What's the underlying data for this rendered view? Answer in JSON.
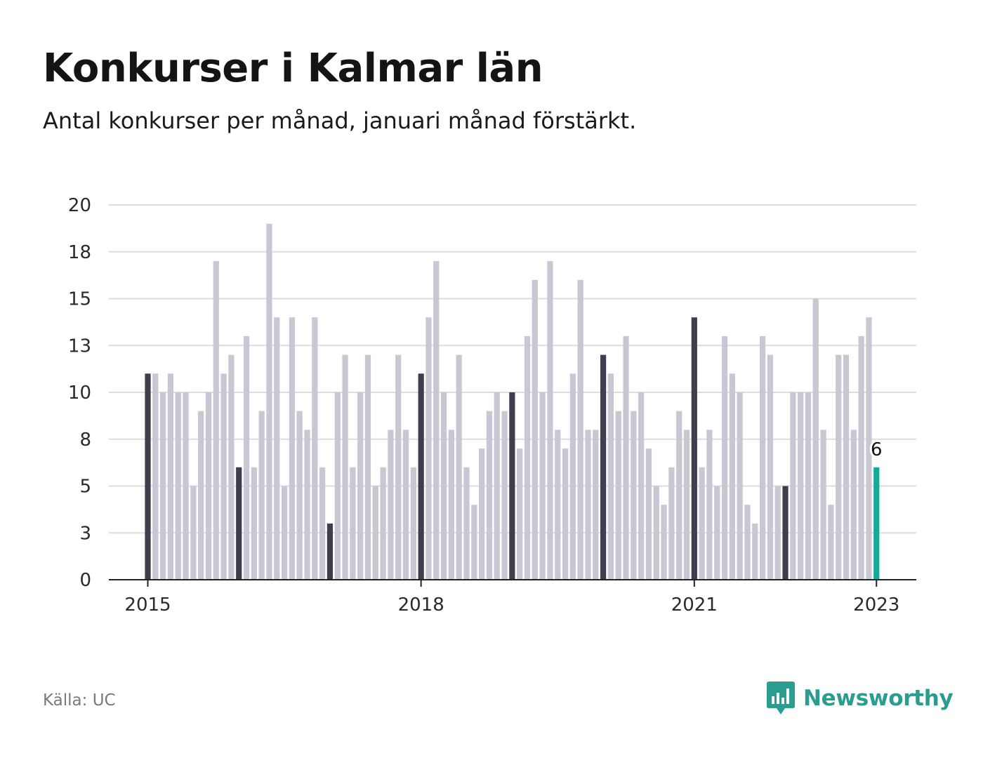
{
  "header": {
    "title": "Konkurser i Kalmar län",
    "subtitle": "Antal konkurser per månad, januari månad förstärkt."
  },
  "footer": {
    "source": "Källa: UC",
    "logo_text": "Newsworthy",
    "logo_icon": "bar-chart-speech-bubble-icon"
  },
  "colors": {
    "bar_default": "#c8c7d3",
    "bar_january": "#3f3e4e",
    "bar_latest": "#14a99a",
    "grid": "#dddddd",
    "axis": "#222222",
    "brand": "#2a9d90"
  },
  "chart_data": {
    "type": "bar",
    "title": "Konkurser i Kalmar län",
    "subtitle": "Antal konkurser per månad, januari månad förstärkt.",
    "xlabel": "",
    "ylabel": "",
    "ylim": [
      0,
      20
    ],
    "y_ticks": [
      0,
      2.5,
      5,
      7.5,
      10,
      12.5,
      15,
      17.5,
      20
    ],
    "y_tick_labels": [
      "0",
      "3",
      "5",
      "8",
      "10",
      "13",
      "15",
      "18",
      "20"
    ],
    "x_ticks": [
      {
        "index": 0,
        "label": "2015"
      },
      {
        "index": 36,
        "label": "2018"
      },
      {
        "index": 72,
        "label": "2021"
      },
      {
        "index": 96,
        "label": "2023"
      }
    ],
    "highlight": "January months darker; latest month (Jan 2023) in accent color",
    "latest_label": "6",
    "grid": true,
    "series": [
      {
        "name": "Antal konkurser",
        "start": "2015-01",
        "values": [
          11,
          11,
          10,
          11,
          10,
          10,
          5,
          9,
          10,
          17,
          11,
          12,
          6,
          13,
          6,
          9,
          19,
          14,
          5,
          14,
          9,
          8,
          14,
          6,
          3,
          10,
          12,
          6,
          10,
          12,
          5,
          6,
          8,
          12,
          8,
          6,
          11,
          14,
          17,
          10,
          8,
          12,
          6,
          4,
          7,
          9,
          10,
          9,
          10,
          7,
          13,
          16,
          10,
          17,
          8,
          7,
          11,
          16,
          8,
          8,
          12,
          11,
          9,
          13,
          9,
          10,
          7,
          5,
          4,
          6,
          9,
          8,
          14,
          6,
          8,
          5,
          13,
          11,
          10,
          4,
          3,
          13,
          12,
          5,
          5,
          10,
          10,
          10,
          15,
          8,
          4,
          12,
          12,
          8,
          13,
          14,
          6
        ]
      }
    ]
  }
}
